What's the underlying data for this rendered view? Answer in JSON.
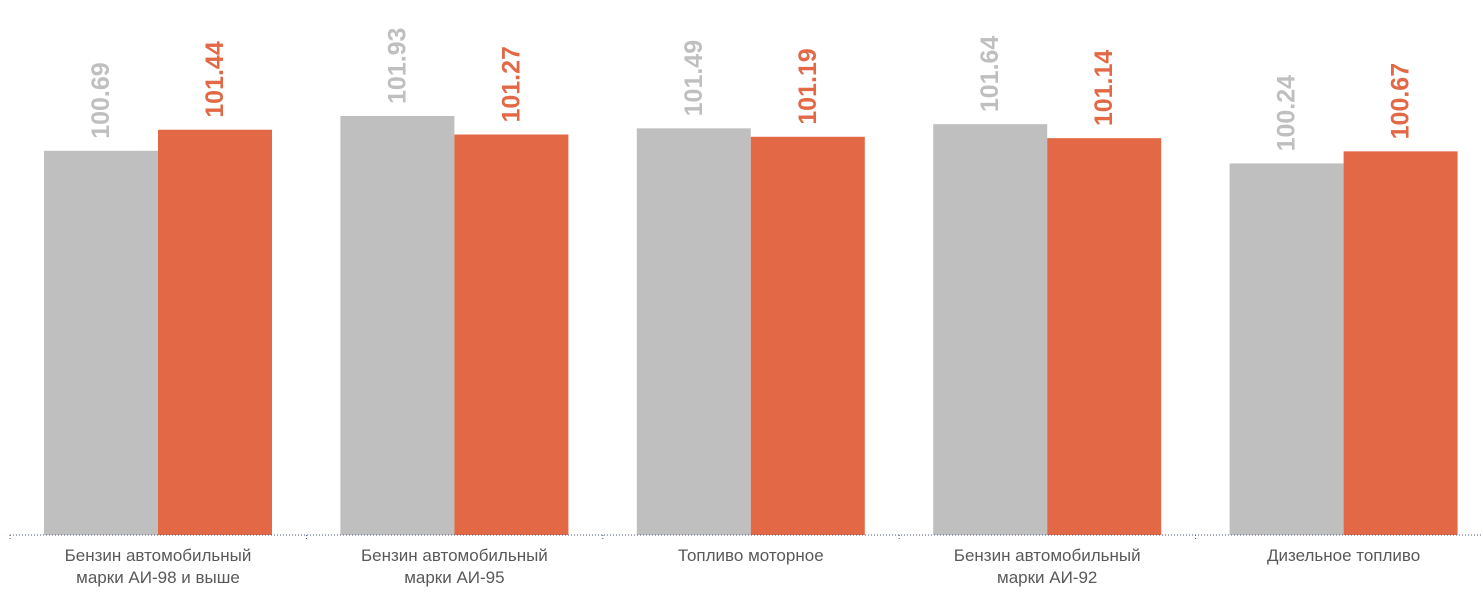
{
  "chart_data": {
    "type": "bar",
    "categories": [
      [
        "Бензин автомобильный",
        "марки АИ-98 и выше"
      ],
      [
        "Бензин автомобильный",
        "марки АИ-95"
      ],
      [
        "Топливо моторное"
      ],
      [
        "Бензин автомобильный",
        "марки АИ-92"
      ],
      [
        "Дизельное топливо"
      ]
    ],
    "series": [
      {
        "values": [
          100.69,
          101.93,
          101.49,
          101.64,
          100.24
        ],
        "color": "#bfbfbf"
      },
      {
        "values": [
          101.44,
          101.27,
          101.19,
          101.14,
          100.67
        ],
        "color": "#e26846"
      }
    ],
    "ylim": [
      87.0,
      102.5
    ],
    "data_labels": true,
    "grid": false,
    "legend": "none"
  }
}
